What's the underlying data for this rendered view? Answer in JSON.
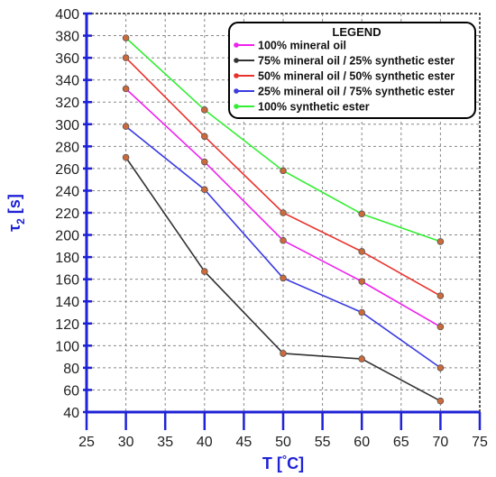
{
  "chart_data": {
    "type": "line",
    "xlabel": "T [°C]",
    "ylabel": "τ2 [s]",
    "xlim": [
      25,
      75
    ],
    "ylim": [
      40,
      400
    ],
    "xticks": [
      "25",
      "30",
      "35",
      "40",
      "45",
      "50",
      "55",
      "60",
      "65",
      "70",
      "75"
    ],
    "yticks": [
      "40",
      "60",
      "80",
      "100",
      "120",
      "140",
      "160",
      "180",
      "200",
      "220",
      "240",
      "260",
      "280",
      "300",
      "320",
      "340",
      "360",
      "380",
      "400"
    ],
    "grid": true,
    "legend_title": "LEGEND",
    "legend_position": "top-right",
    "x": [
      30,
      40,
      50,
      60,
      70
    ],
    "series": [
      {
        "name": "100% mineral oil",
        "color": "#ee22ee",
        "values": [
          332,
          266,
          195,
          158,
          117
        ]
      },
      {
        "name": "75% mineral oil / 25% synthetic ester",
        "color": "#333333",
        "values": [
          270,
          167,
          93,
          88,
          50
        ]
      },
      {
        "name": "50% mineral oil / 50% synthetic ester",
        "color": "#e8322c",
        "values": [
          360,
          289,
          220,
          185,
          145
        ]
      },
      {
        "name": "25% mineral oil / 75% synthetic ester",
        "color": "#3a3ae0",
        "values": [
          298,
          241,
          161,
          130,
          80
        ]
      },
      {
        "name": "100% synthetic ester",
        "color": "#33ee33",
        "values": [
          378,
          313,
          258,
          219,
          194
        ]
      }
    ],
    "marker_color": "#cc6a3a"
  }
}
